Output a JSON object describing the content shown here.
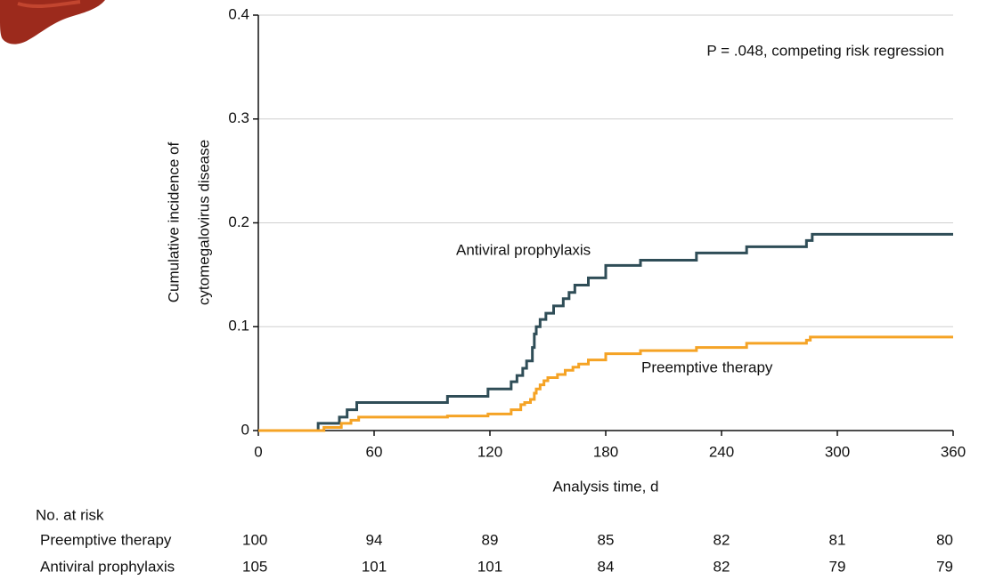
{
  "chart_data": {
    "type": "line",
    "step": "post",
    "y_label": [
      "Cumulative incidence of",
      "cytomegalovirus disease"
    ],
    "x_label": "Analysis time, d",
    "annotation": "P = .048, competing risk regression",
    "xlim": [
      0,
      360
    ],
    "xticks": [
      0,
      60,
      120,
      180,
      240,
      300,
      360
    ],
    "ylim": [
      0,
      0.4
    ],
    "yticks": [
      0,
      0.1,
      0.2,
      0.3,
      0.4
    ],
    "grid": true,
    "series": [
      {
        "name": "Antiviral prophylaxis",
        "color": "#2f4d57",
        "x": [
          0,
          31,
          42,
          46,
          51,
          98,
          119,
          131,
          134,
          137,
          139,
          142,
          143,
          144,
          146,
          149,
          153,
          158,
          161,
          164,
          171,
          180,
          198,
          227,
          253,
          284,
          287,
          360
        ],
        "values": [
          0,
          0.007,
          0.013,
          0.02,
          0.027,
          0.033,
          0.04,
          0.047,
          0.053,
          0.06,
          0.067,
          0.08,
          0.093,
          0.1,
          0.107,
          0.113,
          0.12,
          0.127,
          0.133,
          0.14,
          0.147,
          0.159,
          0.164,
          0.171,
          0.177,
          0.183,
          0.189,
          0.189
        ]
      },
      {
        "name": "Preemptive therapy",
        "color": "#f5a325",
        "x": [
          0,
          34,
          43,
          48,
          52,
          98,
          119,
          131,
          136,
          138,
          141,
          143,
          144,
          146,
          148,
          150,
          155,
          159,
          163,
          166,
          171,
          180,
          198,
          227,
          253,
          284,
          286,
          360
        ],
        "values": [
          0,
          0.003,
          0.007,
          0.01,
          0.013,
          0.014,
          0.016,
          0.02,
          0.025,
          0.027,
          0.03,
          0.036,
          0.04,
          0.044,
          0.048,
          0.051,
          0.054,
          0.058,
          0.061,
          0.064,
          0.068,
          0.074,
          0.077,
          0.08,
          0.084,
          0.087,
          0.09,
          0.09
        ]
      }
    ],
    "risk_table": {
      "title": "No. at risk",
      "rows": [
        {
          "name": "Preemptive therapy",
          "values": [
            100,
            94,
            89,
            85,
            82,
            81,
            80
          ]
        },
        {
          "name": "Antiviral prophylaxis",
          "values": [
            105,
            101,
            101,
            84,
            82,
            79,
            79
          ]
        }
      ]
    }
  }
}
